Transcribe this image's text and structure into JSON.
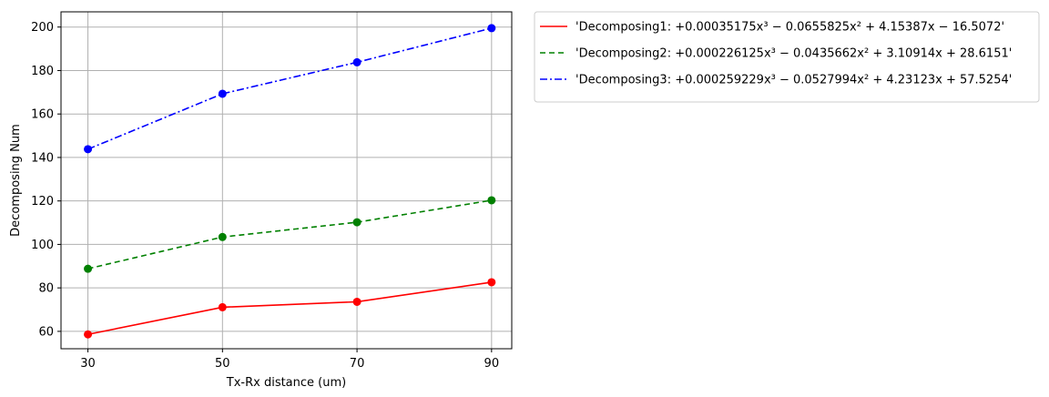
{
  "chart_data": {
    "type": "line",
    "xlabel": "Tx-Rx distance (um)",
    "ylabel": "Decomposing Num",
    "x": [
      30,
      50,
      70,
      90
    ],
    "xticks": [
      "30",
      "50",
      "70",
      "90"
    ],
    "yticks": [
      60,
      80,
      100,
      120,
      140,
      160,
      180,
      200
    ],
    "xlim": [
      26,
      93
    ],
    "ylim": [
      52,
      207
    ],
    "grid": true,
    "legend_position": "outside-top-right",
    "series": [
      {
        "name": "'Decomposing1: +0.00035175x³ − 0.0655825x² + 4.15387x − 16.5072'",
        "values": [
          58.6,
          71.1,
          73.6,
          82.6
        ],
        "color": "#ff0000",
        "dash": "solid",
        "marker": "circle"
      },
      {
        "name": "'Decomposing2: +0.000226125x³ − 0.0435662x² + 3.10914x + 28.6151'",
        "values": [
          88.8,
          103.4,
          110.2,
          120.3
        ],
        "color": "#008000",
        "dash": "dashed",
        "marker": "circle"
      },
      {
        "name": "'Decomposing3: +0.000259229x³ − 0.0527994x² + 4.23123x + 57.5254'",
        "values": [
          143.8,
          169.3,
          183.8,
          199.5
        ],
        "color": "#0000ff",
        "dash": "dashdot",
        "marker": "circle"
      }
    ]
  }
}
